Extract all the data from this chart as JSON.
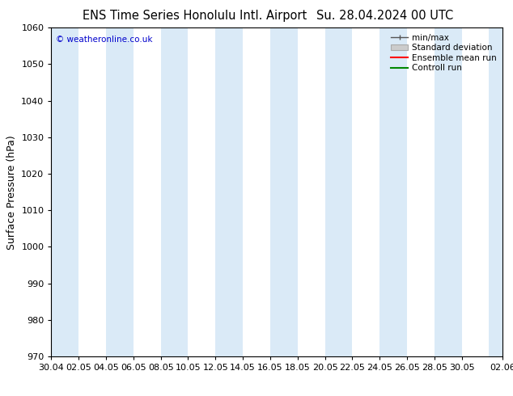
{
  "title_left": "ENS Time Series Honolulu Intl. Airport",
  "title_right": "Su. 28.04.2024 00 UTC",
  "ylabel": "Surface Pressure (hPa)",
  "ylim": [
    970,
    1060
  ],
  "yticks": [
    970,
    980,
    990,
    1000,
    1010,
    1020,
    1030,
    1040,
    1050,
    1060
  ],
  "watermark": "© weatheronline.co.uk",
  "watermark_color": "#0000cc",
  "bg_color": "#ffffff",
  "plot_bg_color": "#ffffff",
  "stripe_color": "#daeaf7",
  "title_fontsize": 10.5,
  "tick_fontsize": 8,
  "ylabel_fontsize": 9,
  "x_labels": [
    "30.04",
    "02.05",
    "04.05",
    "06.05",
    "08.05",
    "10.05",
    "12.05",
    "14.05",
    "16.05",
    "18.05",
    "20.05",
    "22.05",
    "24.05",
    "26.05",
    "28.05",
    "30.05",
    "02.06"
  ],
  "x_positions": [
    0,
    2,
    4,
    6,
    8,
    10,
    12,
    14,
    16,
    18,
    20,
    22,
    24,
    26,
    28,
    30,
    33
  ],
  "legend_labels": [
    "min/max",
    "Standard deviation",
    "Ensemble mean run",
    "Controll run"
  ],
  "legend_line_color": "#555555",
  "legend_red": "#ff0000",
  "legend_green": "#008800"
}
